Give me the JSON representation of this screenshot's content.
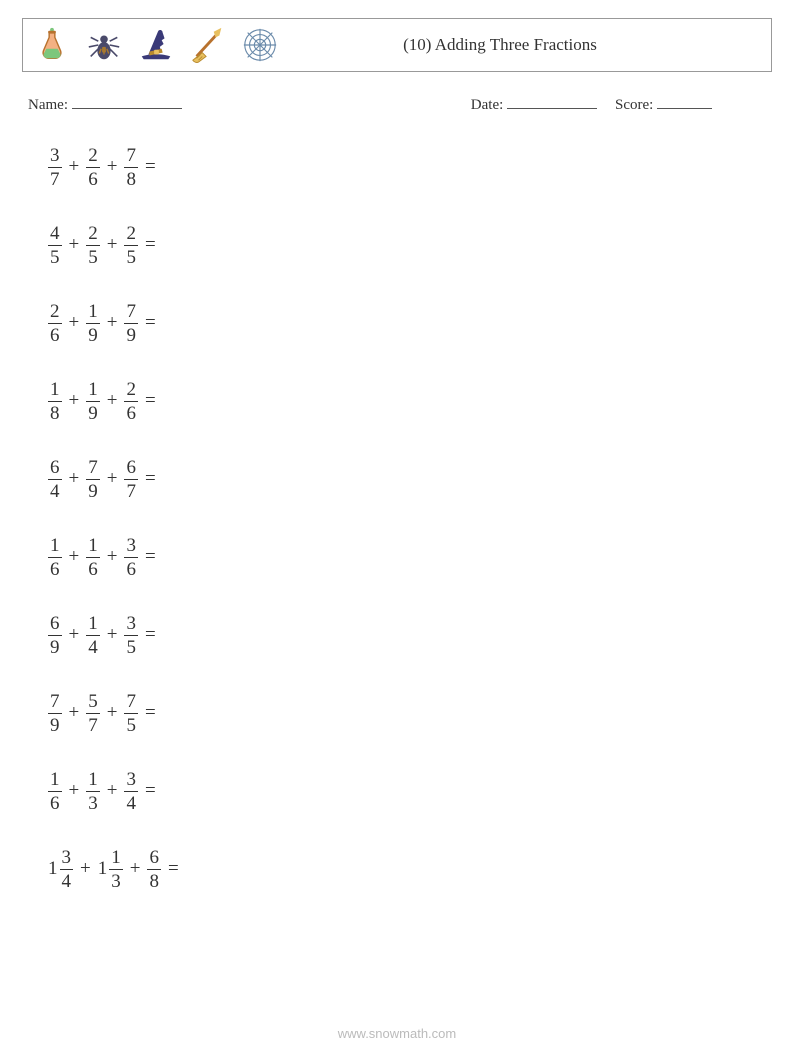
{
  "header": {
    "title": "(10) Adding Three Fractions"
  },
  "info": {
    "name_label": "Name:",
    "date_label": "Date:",
    "score_label": "Score:"
  },
  "problems": [
    {
      "terms": [
        {
          "n": "3",
          "d": "7"
        },
        {
          "n": "2",
          "d": "6"
        },
        {
          "n": "7",
          "d": "8"
        }
      ]
    },
    {
      "terms": [
        {
          "n": "4",
          "d": "5"
        },
        {
          "n": "2",
          "d": "5"
        },
        {
          "n": "2",
          "d": "5"
        }
      ]
    },
    {
      "terms": [
        {
          "n": "2",
          "d": "6"
        },
        {
          "n": "1",
          "d": "9"
        },
        {
          "n": "7",
          "d": "9"
        }
      ]
    },
    {
      "terms": [
        {
          "n": "1",
          "d": "8"
        },
        {
          "n": "1",
          "d": "9"
        },
        {
          "n": "2",
          "d": "6"
        }
      ]
    },
    {
      "terms": [
        {
          "n": "6",
          "d": "4"
        },
        {
          "n": "7",
          "d": "9"
        },
        {
          "n": "6",
          "d": "7"
        }
      ]
    },
    {
      "terms": [
        {
          "n": "1",
          "d": "6"
        },
        {
          "n": "1",
          "d": "6"
        },
        {
          "n": "3",
          "d": "6"
        }
      ]
    },
    {
      "terms": [
        {
          "n": "6",
          "d": "9"
        },
        {
          "n": "1",
          "d": "4"
        },
        {
          "n": "3",
          "d": "5"
        }
      ]
    },
    {
      "terms": [
        {
          "n": "7",
          "d": "9"
        },
        {
          "n": "5",
          "d": "7"
        },
        {
          "n": "7",
          "d": "5"
        }
      ]
    },
    {
      "terms": [
        {
          "n": "1",
          "d": "6"
        },
        {
          "n": "1",
          "d": "3"
        },
        {
          "n": "3",
          "d": "4"
        }
      ]
    },
    {
      "terms": [
        {
          "w": "1",
          "n": "3",
          "d": "4"
        },
        {
          "w": "1",
          "n": "1",
          "d": "3"
        },
        {
          "n": "6",
          "d": "8"
        }
      ]
    }
  ],
  "equals": "=",
  "plus": "+",
  "footer": "www.snowmath.com",
  "colors": {
    "text": "#333333",
    "border": "#999999",
    "footer": "#bbbbbb",
    "background": "#ffffff"
  }
}
